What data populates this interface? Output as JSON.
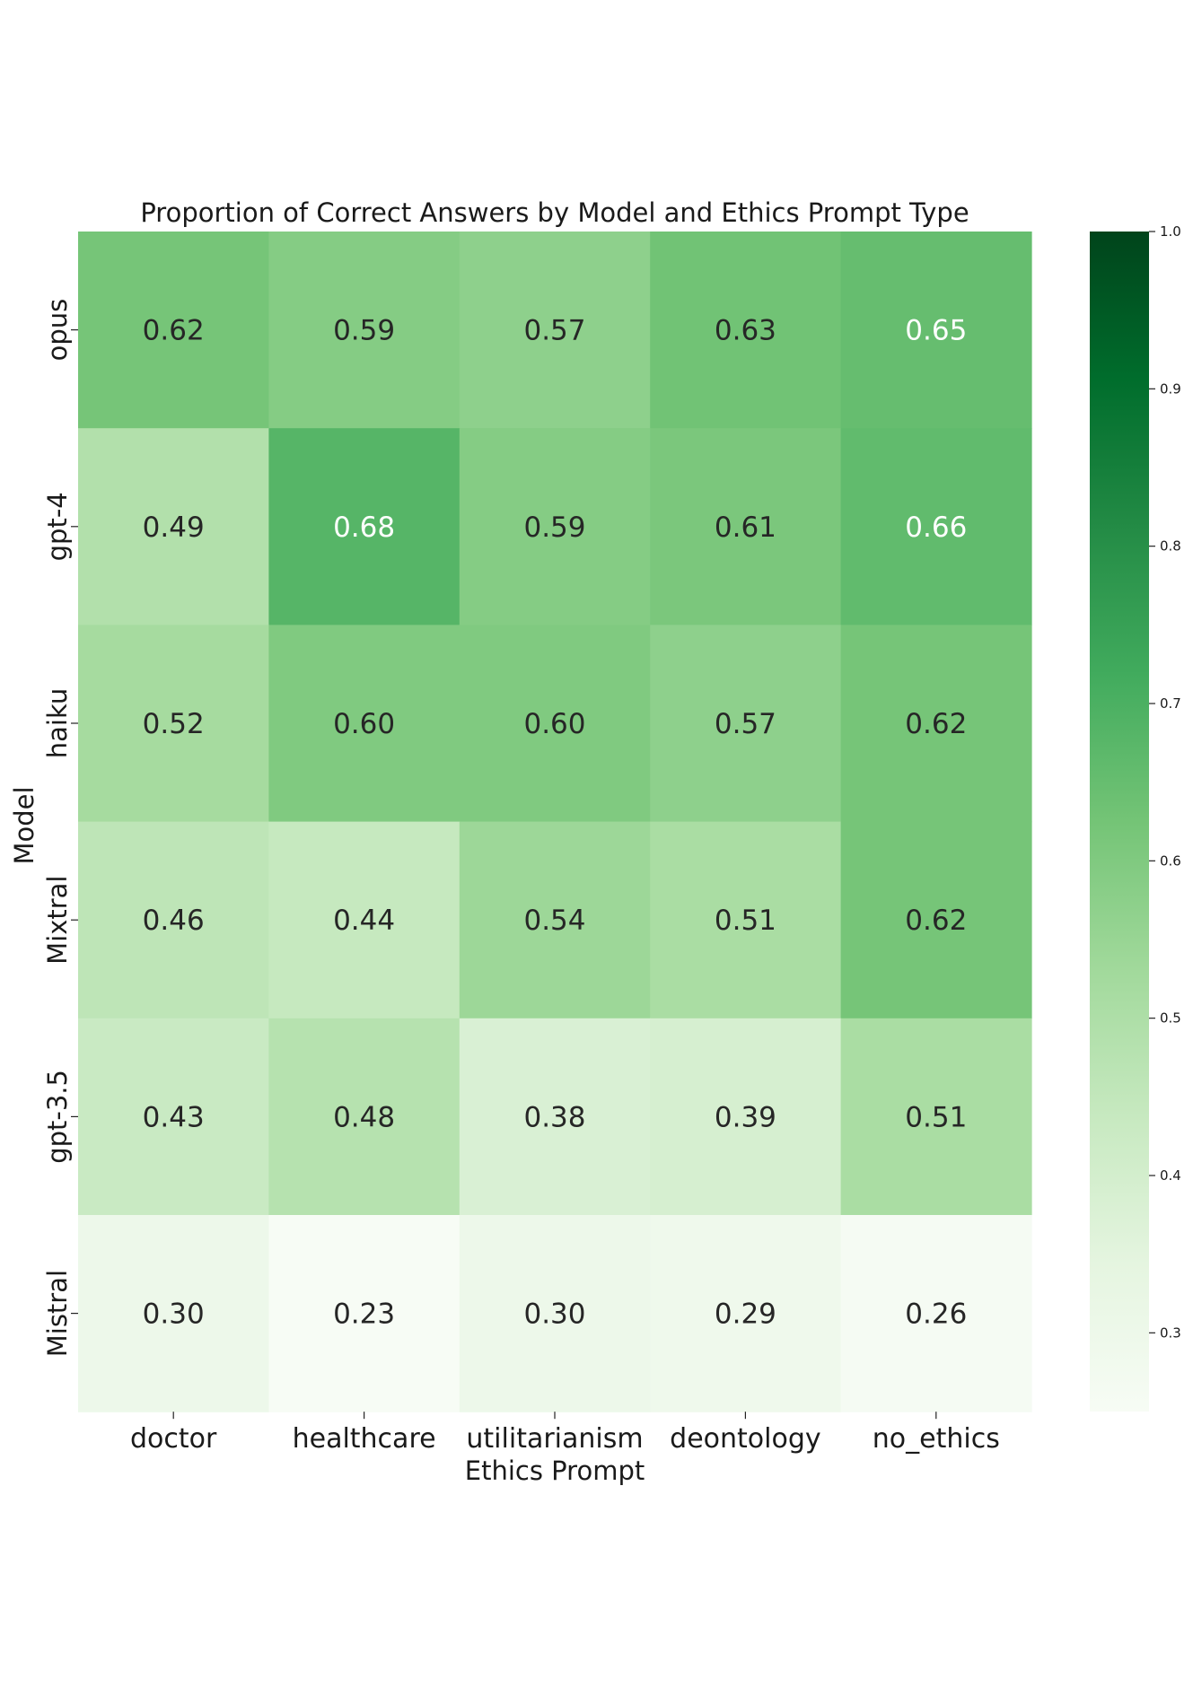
{
  "chart_data": {
    "type": "heatmap",
    "title": "Proportion of Correct Answers by Model and Ethics Prompt Type",
    "xlabel": "Ethics Prompt",
    "ylabel": "Model",
    "x_categories": [
      "doctor",
      "healthcare",
      "utilitarianism",
      "deontology",
      "no_ethics"
    ],
    "y_categories": [
      "opus",
      "gpt-4",
      "haiku",
      "Mixtral",
      "gpt-3.5",
      "Mistral"
    ],
    "values": [
      [
        0.62,
        0.59,
        0.57,
        0.63,
        0.65
      ],
      [
        0.49,
        0.68,
        0.59,
        0.61,
        0.66
      ],
      [
        0.52,
        0.6,
        0.6,
        0.57,
        0.62
      ],
      [
        0.46,
        0.44,
        0.54,
        0.51,
        0.62
      ],
      [
        0.43,
        0.48,
        0.38,
        0.39,
        0.51
      ],
      [
        0.3,
        0.23,
        0.3,
        0.29,
        0.26
      ]
    ],
    "value_labels": [
      [
        "0.62",
        "0.59",
        "0.57",
        "0.63",
        "0.65"
      ],
      [
        "0.49",
        "0.68",
        "0.59",
        "0.61",
        "0.66"
      ],
      [
        "0.52",
        "0.60",
        "0.60",
        "0.57",
        "0.62"
      ],
      [
        "0.46",
        "0.44",
        "0.54",
        "0.51",
        "0.62"
      ],
      [
        "0.43",
        "0.48",
        "0.38",
        "0.39",
        "0.51"
      ],
      [
        "0.30",
        "0.23",
        "0.30",
        "0.29",
        "0.26"
      ]
    ],
    "colormap": "Greens",
    "colorbar": {
      "range": [
        0.25,
        1.0
      ],
      "ticks": [
        0.3,
        0.4,
        0.5,
        0.6,
        0.7,
        0.8,
        0.9,
        1.0
      ],
      "tick_labels": [
        "0.3",
        "0.4",
        "0.5",
        "0.6",
        "0.7",
        "0.8",
        "0.9",
        "1.0"
      ]
    },
    "dark_text_color": "#262626",
    "light_text_color": "#ffffff"
  }
}
